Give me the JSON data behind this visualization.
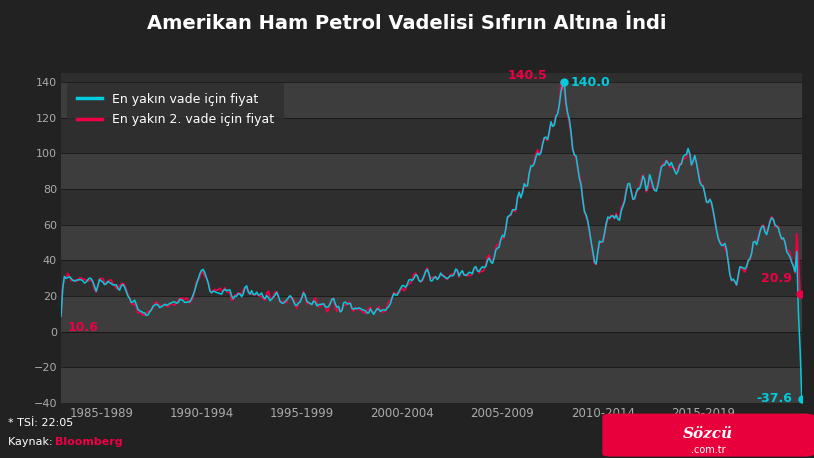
{
  "title": "Amerikan Ham Petrol Vadelisi Sıfırın Altına İndi",
  "title_color": "#ffffff",
  "bg_color": "#222222",
  "plot_bg_dark": "#2e2e2e",
  "plot_bg_light": "#3d3d3d",
  "line1_color": "#00ccdd",
  "line2_color": "#ee0044",
  "legend": [
    "En yakın vade için fiyat",
    "En yakın 2. vade için fiyat"
  ],
  "ylim": [
    -40,
    145
  ],
  "yticks": [
    -40.0,
    -20.0,
    0.0,
    20.0,
    40.0,
    60.0,
    80.0,
    100.0,
    120.0,
    140.0
  ],
  "xtick_labels": [
    "1985-1989",
    "1990-1994",
    "1995-1999",
    "2000-2004",
    "2005-2009",
    "2010-2014",
    "2015-2019"
  ],
  "footer_text1": "* TSİ: 22:05",
  "footer_text2_prefix": "Kaynak: ",
  "footer_text2_source": "Bloomberg",
  "footer_source_color": "#ee0044"
}
